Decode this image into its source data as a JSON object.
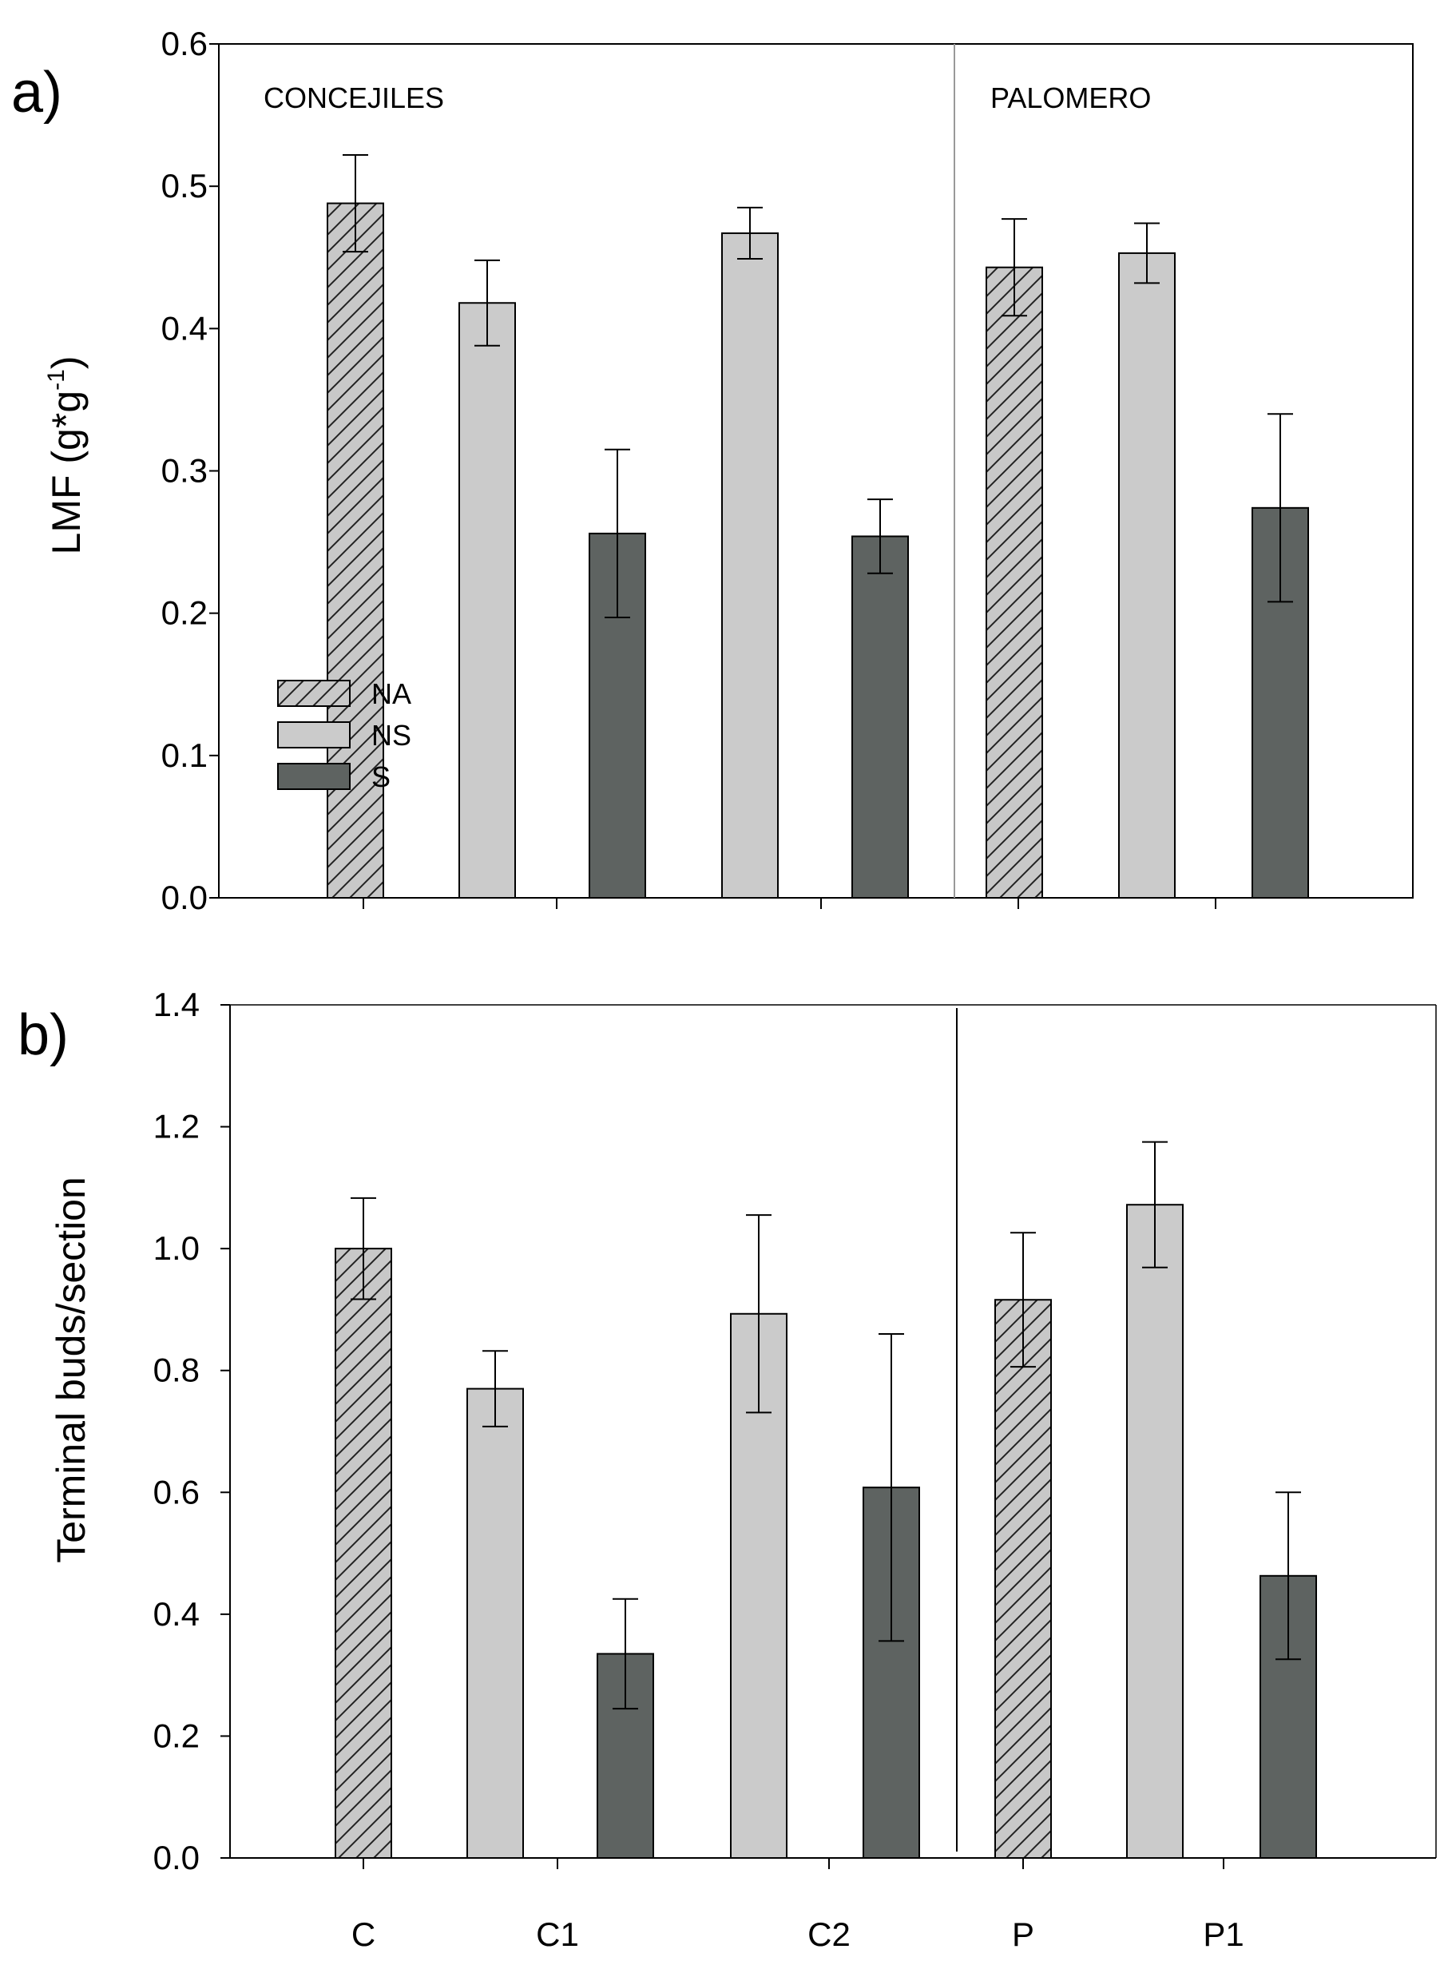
{
  "colors": {
    "NA": "#c8c8c8",
    "NS": "#cbcbcb",
    "S": "#5e6361",
    "hatch": "#222222"
  },
  "chart_data": [
    {
      "type": "bar",
      "panel_label": "a)",
      "ylabel": "LMF (g*g",
      "ylabel_sup": "-1",
      "ylabel_close": ")",
      "xlabel": "",
      "ylim": [
        0,
        0.6
      ],
      "yticks": [
        "0.0",
        "0.1",
        "0.2",
        "0.3",
        "0.4",
        "0.5",
        "0.6"
      ],
      "site_labels": [
        "CONCEJILES",
        "PALOMERO"
      ],
      "legend": [
        "NA",
        "NS",
        "S"
      ],
      "bars": [
        {
          "group": "C",
          "cls": "NA",
          "value": 0.488,
          "err": 0.034
        },
        {
          "group": "C1",
          "cls": "NS",
          "value": 0.418,
          "err": 0.03
        },
        {
          "group": "C1",
          "cls": "S",
          "value": 0.256,
          "err": 0.059
        },
        {
          "group": "C2",
          "cls": "NS",
          "value": 0.467,
          "err": 0.018
        },
        {
          "group": "C2",
          "cls": "S",
          "value": 0.254,
          "err": 0.026
        },
        {
          "group": "P",
          "cls": "NA",
          "value": 0.443,
          "err": 0.034
        },
        {
          "group": "P1",
          "cls": "NS",
          "value": 0.453,
          "err": 0.021
        },
        {
          "group": "P1",
          "cls": "S",
          "value": 0.274,
          "err": 0.066
        }
      ]
    },
    {
      "type": "bar",
      "panel_label": "b)",
      "ylabel": "Terminal buds/section",
      "xlabel": "",
      "ylim": [
        0,
        1.4
      ],
      "yticks": [
        "0.0",
        "0.2",
        "0.4",
        "0.6",
        "0.8",
        "1.0",
        "1.2",
        "1.4"
      ],
      "categories": [
        "C",
        "C1",
        "C2",
        "P",
        "P1"
      ],
      "bars": [
        {
          "group": "C",
          "cls": "NA",
          "value": 1.0,
          "err": 0.083
        },
        {
          "group": "C1",
          "cls": "NS",
          "value": 0.77,
          "err": 0.062
        },
        {
          "group": "C1",
          "cls": "S",
          "value": 0.335,
          "err": 0.09
        },
        {
          "group": "C2",
          "cls": "NS",
          "value": 0.893,
          "err": 0.162
        },
        {
          "group": "C2",
          "cls": "S",
          "value": 0.608,
          "err": 0.252
        },
        {
          "group": "P",
          "cls": "NA",
          "value": 0.916,
          "err": 0.11
        },
        {
          "group": "P1",
          "cls": "NS",
          "value": 1.072,
          "err": 0.103
        },
        {
          "group": "P1",
          "cls": "S",
          "value": 0.463,
          "err": 0.137
        }
      ]
    }
  ]
}
